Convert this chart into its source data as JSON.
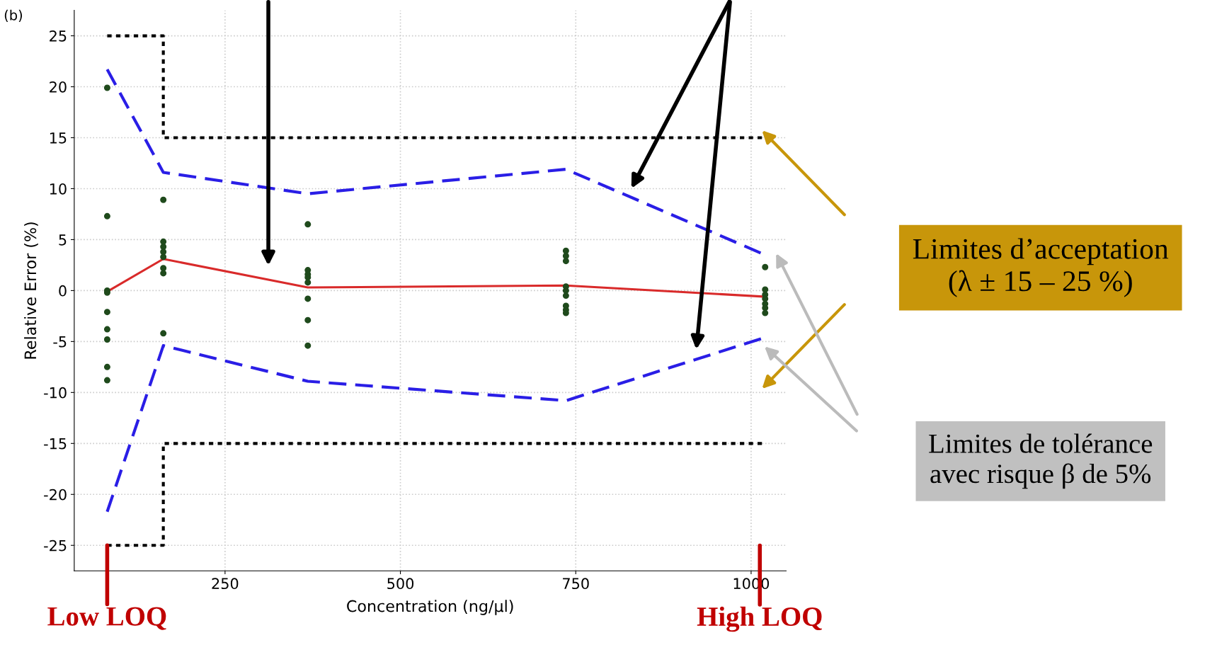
{
  "chart_data": {
    "type": "line",
    "xlabel": "Concentration (ng/µl)",
    "ylabel": "Relative Error (%)",
    "xlim": [
      35,
      1050
    ],
    "ylim": [
      -27.5,
      27.5
    ],
    "xticks": [
      250,
      500,
      750,
      1000
    ],
    "yticks": [
      -25,
      -20,
      -15,
      -10,
      -5,
      0,
      5,
      10,
      15,
      20,
      25
    ],
    "grid": true,
    "series": [
      {
        "line_style": "dotted",
        "color": "#000000",
        "x": [
          82,
          162,
          162,
          1020
        ],
        "values": [
          25,
          25,
          15,
          15
        ]
      },
      {
        "line_style": "dotted",
        "color": "#000000",
        "x": [
          82,
          162,
          162,
          1020
        ],
        "values": [
          -25,
          -25,
          -15,
          -15
        ]
      },
      {
        "line_style": "dashed",
        "color": "#2a1ee6",
        "x": [
          82,
          162,
          368,
          736,
          1020
        ],
        "values": [
          21.7,
          11.6,
          9.5,
          11.9,
          3.5
        ]
      },
      {
        "line_style": "dashed",
        "color": "#2a1ee6",
        "x": [
          82,
          162,
          368,
          736,
          1020
        ],
        "values": [
          -21.7,
          -5.4,
          -8.9,
          -10.8,
          -4.6
        ]
      },
      {
        "line_style": "solid",
        "color": "#d92a2a",
        "x": [
          82,
          162,
          368,
          736,
          1020
        ],
        "values": [
          -0.1,
          3.1,
          0.3,
          0.5,
          -0.6
        ]
      },
      {
        "type": "scatter",
        "marker": "circle",
        "color": "#1f4a1c",
        "x": [
          82,
          82,
          82,
          82,
          82,
          82,
          82,
          82,
          82,
          162,
          162,
          162,
          162,
          162,
          162,
          162,
          162,
          368,
          368,
          368,
          368,
          368,
          368,
          368,
          368,
          736,
          736,
          736,
          736,
          736,
          736,
          736,
          736,
          736,
          1020,
          1020,
          1020,
          1020,
          1020,
          1020,
          1020
        ],
        "values": [
          19.9,
          7.3,
          0,
          -0.2,
          -2.1,
          -3.8,
          -4.8,
          -7.5,
          -8.8,
          8.9,
          4.8,
          4.3,
          3.8,
          3.3,
          2.2,
          1.7,
          -4.2,
          6.5,
          2.0,
          1.6,
          1.3,
          0.8,
          -0.8,
          -2.9,
          -5.4,
          3.9,
          3.4,
          2.9,
          0.4,
          0,
          -0.5,
          -1.5,
          -1.9,
          -2.2,
          2.3,
          0.1,
          -0.4,
          -0.8,
          -1.3,
          -1.7,
          -2.2
        ]
      }
    ],
    "annotations": [
      "(b)",
      {
        "text": "Low LOQ",
        "x": 82,
        "y": -25
      },
      "High LOQ",
      "Limites d’acceptation\n(λ ± 15 – 25 %)",
      "Limites de tolérance\navec risque β de 5%"
    ]
  }
}
